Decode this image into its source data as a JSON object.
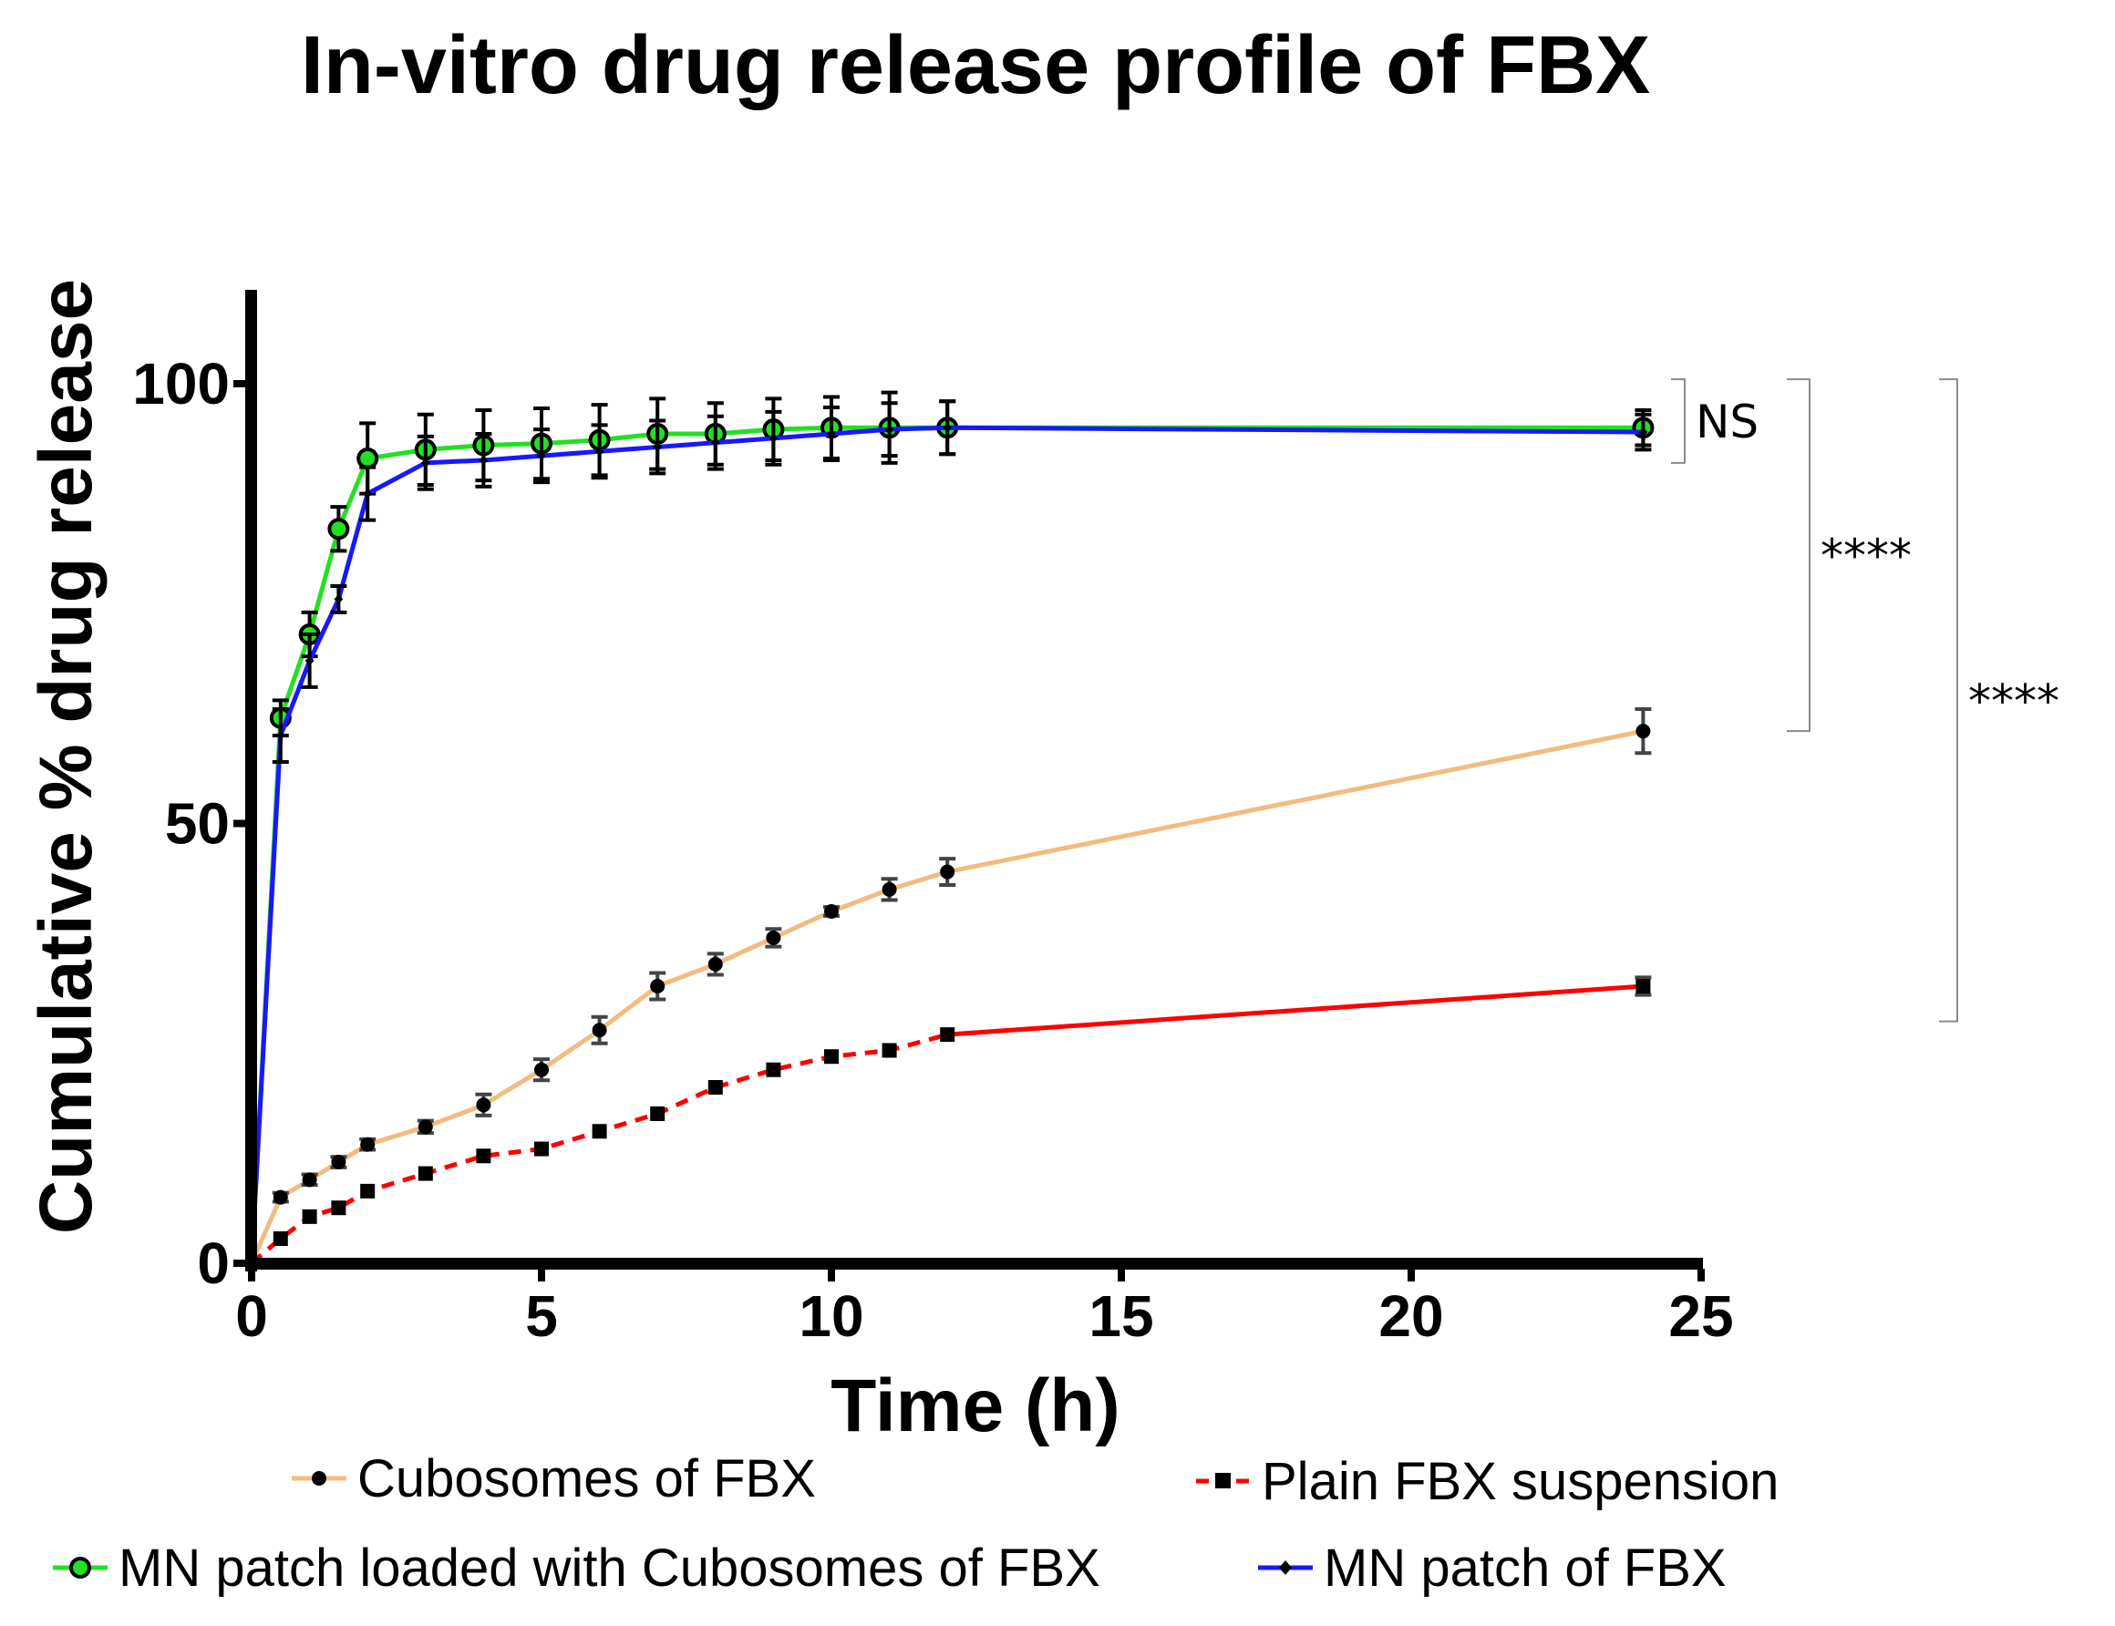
{
  "chart_data": {
    "type": "line",
    "title": "In-vitro drug release profile of FBX",
    "xlabel": "Time (h)",
    "ylabel": "Cumulative % drug release",
    "xlim": [
      0,
      25
    ],
    "ylim": [
      0,
      110
    ],
    "xticks": [
      "0",
      "5",
      "10",
      "15",
      "20",
      "25"
    ],
    "yticks": [
      "0",
      "50",
      "100"
    ],
    "grid": false,
    "legend_position": "bottom",
    "series": [
      {
        "name": "Cubosomes of FBX",
        "color": "#f2bc80",
        "marker": "dot",
        "line_style": "solid",
        "x": [
          0,
          0.5,
          1,
          1.5,
          2,
          3,
          4,
          5,
          6,
          7,
          8,
          9,
          10,
          11,
          12,
          24
        ],
        "y": [
          0,
          7.5,
          9.5,
          11.5,
          13.5,
          15.5,
          18,
          22,
          26.5,
          31.5,
          34,
          37,
          40,
          42.5,
          44.5,
          60.5
        ],
        "err": [
          0,
          0.5,
          0.6,
          0.6,
          0.6,
          0.7,
          1.2,
          1.2,
          1.5,
          1.5,
          1.2,
          1.0,
          0.5,
          1.2,
          1.5,
          2.5
        ]
      },
      {
        "name": "Plain FBX suspension",
        "color": "#ff0000",
        "marker": "square",
        "line_style": "dashed-then-solid",
        "x": [
          0,
          0.5,
          1,
          1.5,
          2,
          3,
          4,
          5,
          6,
          7,
          8,
          9,
          10,
          11,
          12,
          24
        ],
        "y": [
          0,
          2.8,
          5.3,
          6.3,
          8.2,
          10.2,
          12.2,
          13,
          15,
          17,
          20,
          22,
          23.5,
          24.2,
          26,
          31.5
        ],
        "err": [
          0,
          0.3,
          0.3,
          0.3,
          0.3,
          0.3,
          0.3,
          0.3,
          0.3,
          0.3,
          0.3,
          0.3,
          0.3,
          0.3,
          0.3,
          1.0
        ]
      },
      {
        "name": "MN patch loaded with Cubosomes of FBX",
        "color": "#22e022",
        "marker": "open-circle",
        "line_style": "solid",
        "x": [
          0,
          0.5,
          1,
          1.5,
          2,
          3,
          4,
          5,
          6,
          7,
          8,
          9,
          10,
          11,
          12,
          24
        ],
        "y": [
          0,
          62,
          71.5,
          83.5,
          91.5,
          92.5,
          93,
          93.2,
          93.6,
          94.3,
          94.3,
          94.8,
          95,
          95,
          95,
          95
        ],
        "err": [
          0,
          2,
          2.5,
          2.5,
          4,
          4,
          4,
          4,
          4,
          4,
          3.5,
          3.5,
          3.5,
          4,
          3,
          2
        ]
      },
      {
        "name": "MN patch of FBX",
        "color": "#1818ff",
        "marker": "diamond",
        "line_style": "solid",
        "x": [
          0,
          0.5,
          1,
          1.5,
          2,
          3,
          4,
          5,
          6,
          7,
          8,
          9,
          10,
          11,
          12,
          24
        ],
        "y": [
          0,
          60,
          68.5,
          75.5,
          87.5,
          91,
          91.3,
          91.8,
          92.3,
          92.8,
          93.3,
          93.8,
          94.3,
          94.8,
          95,
          94.5
        ],
        "err": [
          0,
          3,
          3,
          1.5,
          3,
          3,
          3,
          3,
          3,
          3,
          3,
          3,
          3,
          3,
          3,
          2
        ]
      }
    ],
    "annotations": [
      {
        "label": "NS",
        "from_y": 100.5,
        "to_y": 91,
        "level": 1
      },
      {
        "label": "****",
        "from_y": 100.5,
        "to_y": 60.5,
        "level": 2
      },
      {
        "label": "****",
        "from_y": 100.5,
        "to_y": 27.5,
        "level": 3
      }
    ]
  }
}
